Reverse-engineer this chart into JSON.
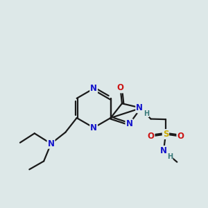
{
  "bg_color": "#dde8e8",
  "bond_color": "#1a1a1a",
  "bond_width": 1.6,
  "atom_colors": {
    "N": "#1414cc",
    "O": "#cc1414",
    "S": "#ccaa00",
    "H": "#3a7a7a"
  },
  "font_size": 8.5,
  "font_size_h": 7.0
}
